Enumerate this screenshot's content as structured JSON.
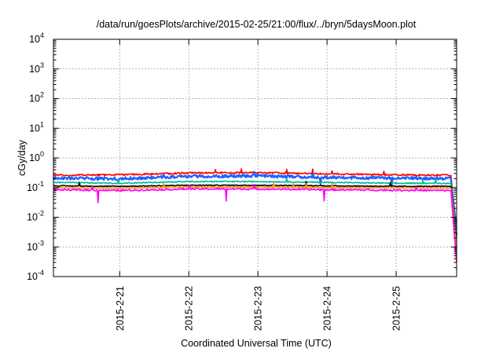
{
  "chart_data": {
    "type": "line",
    "title": "/data/run/goesPlots/archive/2015-02-25/21:00/flux/../bryn/5daysMoon.plot",
    "xlabel": "Coordinated Universal Time (UTC)",
    "ylabel": "cGy/day",
    "yscale": "log",
    "ylim": [
      0.0001,
      10000
    ],
    "xlim": [
      "2015-02-20 01:00",
      "2015-02-25 21:00"
    ],
    "grid": true,
    "x_ticks": [
      "2015-2-21",
      "2015-2-22",
      "2015-2-23",
      "2015-2-24",
      "2015-2-25"
    ],
    "y_ticks": [
      {
        "base": "10",
        "exp": "-4"
      },
      {
        "base": "10",
        "exp": "-3"
      },
      {
        "base": "10",
        "exp": "-2"
      },
      {
        "base": "10",
        "exp": "-1"
      },
      {
        "base": "10",
        "exp": "0"
      },
      {
        "base": "10",
        "exp": "1"
      },
      {
        "base": "10",
        "exp": "2"
      },
      {
        "base": "10",
        "exp": "3"
      },
      {
        "base": "10",
        "exp": "4"
      }
    ],
    "series": [
      {
        "color": "#ff0000",
        "level": 0.29,
        "noise": 0.06,
        "drop_to": 0.004,
        "x": [
          "2015-02-20 01:00",
          "2015-02-21 00:00",
          "2015-02-22 00:00",
          "2015-02-23 00:00",
          "2015-02-24 00:00",
          "2015-02-25 00:00",
          "2015-02-25 19:00",
          "2015-02-25 21:00"
        ],
        "y": [
          0.26,
          0.27,
          0.31,
          0.32,
          0.29,
          0.27,
          0.26,
          0.004
        ]
      },
      {
        "color": "#2060ff",
        "level": 0.22,
        "noise": 0.1,
        "drop_to": 0.0025,
        "x": [
          "2015-02-20 01:00",
          "2015-02-21 00:00",
          "2015-02-22 00:00",
          "2015-02-23 00:00",
          "2015-02-24 00:00",
          "2015-02-25 00:00",
          "2015-02-25 19:00",
          "2015-02-25 21:00"
        ],
        "y": [
          0.21,
          0.2,
          0.24,
          0.25,
          0.22,
          0.21,
          0.2,
          0.0025
        ]
      },
      {
        "color": "#00b8a0",
        "level": 0.15,
        "noise": 0.04,
        "drop_to": 0.0015,
        "x": [
          "2015-02-20 01:00",
          "2015-02-21 00:00",
          "2015-02-22 00:00",
          "2015-02-23 00:00",
          "2015-02-24 00:00",
          "2015-02-25 00:00",
          "2015-02-25 19:00",
          "2015-02-25 21:00"
        ],
        "y": [
          0.15,
          0.14,
          0.16,
          0.16,
          0.15,
          0.14,
          0.14,
          0.0015
        ]
      },
      {
        "color": "#000000",
        "level": 0.115,
        "noise": 0.03,
        "drop_to": 0.001,
        "x": [
          "2015-02-20 01:00",
          "2015-02-21 00:00",
          "2015-02-22 00:00",
          "2015-02-23 00:00",
          "2015-02-24 00:00",
          "2015-02-25 00:00",
          "2015-02-25 19:00",
          "2015-02-25 21:00"
        ],
        "y": [
          0.115,
          0.11,
          0.12,
          0.12,
          0.115,
          0.11,
          0.11,
          0.001
        ]
      },
      {
        "color": "#ff9900",
        "level": 0.1,
        "noise": 0.03,
        "drop_to": 0.0008,
        "x": [
          "2015-02-20 01:00",
          "2015-02-21 00:00",
          "2015-02-22 00:00",
          "2015-02-23 00:00",
          "2015-02-24 00:00",
          "2015-02-25 00:00",
          "2015-02-25 19:00",
          "2015-02-25 21:00"
        ],
        "y": [
          0.1,
          0.095,
          0.105,
          0.105,
          0.1,
          0.098,
          0.097,
          0.0008
        ]
      },
      {
        "color": "#ff00ff",
        "level": 0.085,
        "noise": 0.06,
        "drop_to": 0.0003,
        "x": [
          "2015-02-20 01:00",
          "2015-02-21 00:00",
          "2015-02-22 00:00",
          "2015-02-23 00:00",
          "2015-02-24 00:00",
          "2015-02-25 00:00",
          "2015-02-25 19:00",
          "2015-02-25 21:00"
        ],
        "y": [
          0.085,
          0.08,
          0.09,
          0.09,
          0.085,
          0.082,
          0.08,
          0.0003
        ]
      }
    ]
  }
}
